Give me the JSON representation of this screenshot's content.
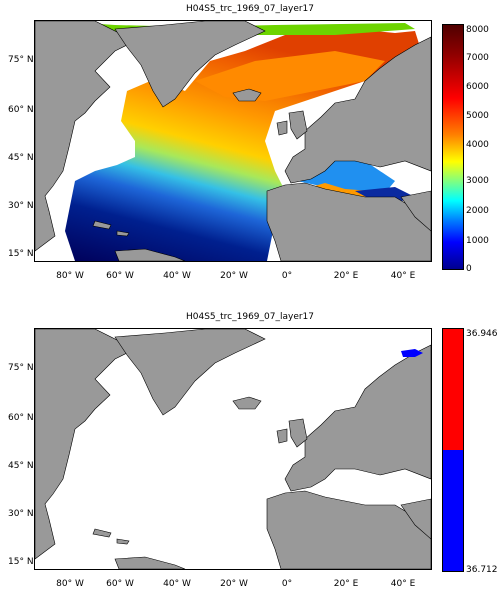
{
  "maps": [
    {
      "title": "H04S5_trc_1969_07_layer17",
      "lat_labels": [
        "75° N",
        "60° N",
        "45° N",
        "30° N",
        "15° N"
      ],
      "lon_labels": [
        "80° W",
        "60° W",
        "40° W",
        "20° W",
        "0°",
        "20° E",
        "40° E"
      ],
      "colorbar_labels": [
        "8000",
        "7000",
        "6000",
        "5000",
        "4000",
        "3000",
        "2000",
        "1000",
        "0"
      ],
      "colorbar_range": [
        0,
        8000
      ],
      "colormap": "jet"
    },
    {
      "title": "H04S5_trc_1969_07_layer17",
      "lat_labels": [
        "75° N",
        "60° N",
        "45° N",
        "30° N",
        "15° N"
      ],
      "lon_labels": [
        "80° W",
        "60° W",
        "40° W",
        "20° W",
        "0°",
        "20° E",
        "40° E"
      ],
      "colorbar_labels": [
        "36.946",
        "36.712"
      ],
      "colorbar_range": [
        36.712,
        36.946
      ],
      "colors": {
        "high": "#ff0000",
        "low": "#0000ff"
      }
    }
  ],
  "colors": {
    "land": "#999999",
    "ocean_nodata": "#ffffff"
  }
}
